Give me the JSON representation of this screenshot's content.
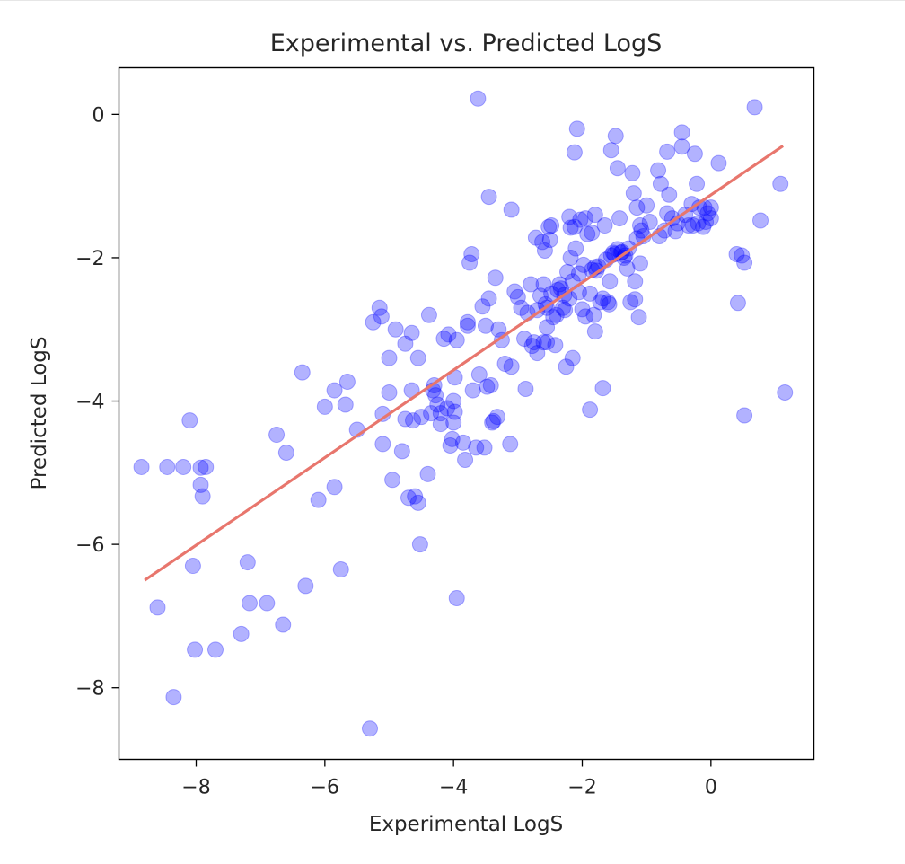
{
  "chart_data": {
    "type": "scatter",
    "title": "Experimental vs. Predicted LogS",
    "xlabel": "Experimental LogS",
    "ylabel": "Predicted LogS",
    "xlim": [
      -9.2,
      1.6
    ],
    "ylim": [
      -9.0,
      0.65
    ],
    "xticks": [
      -8,
      -6,
      -4,
      -2,
      0
    ],
    "yticks": [
      0,
      -2,
      -4,
      -6,
      -8
    ],
    "xtick_labels": [
      "−8",
      "−6",
      "−4",
      "−2",
      "0"
    ],
    "ytick_labels": [
      "0",
      "−2",
      "−4",
      "−6",
      "−8"
    ],
    "grid": false,
    "point_color": "#0000ff",
    "point_alpha": 0.3,
    "fit_color": "#e8766d",
    "fit_line": {
      "x": [
        -8.8,
        1.12
      ],
      "y": [
        -6.5,
        -0.44
      ]
    },
    "points": [
      [
        -8.85,
        -4.92
      ],
      [
        -8.45,
        -4.92
      ],
      [
        -8.2,
        -4.92
      ],
      [
        -8.6,
        -6.88
      ],
      [
        -8.35,
        -8.13
      ],
      [
        -8.05,
        -6.3
      ],
      [
        -8.02,
        -7.47
      ],
      [
        -8.1,
        -4.27
      ],
      [
        -7.93,
        -4.93
      ],
      [
        -7.85,
        -4.92
      ],
      [
        -7.93,
        -5.17
      ],
      [
        -7.9,
        -5.33
      ],
      [
        -7.7,
        -7.47
      ],
      [
        -7.2,
        -6.25
      ],
      [
        -7.17,
        -6.82
      ],
      [
        -7.3,
        -7.25
      ],
      [
        -6.9,
        -6.82
      ],
      [
        -6.75,
        -4.47
      ],
      [
        -6.65,
        -7.12
      ],
      [
        -6.6,
        -4.72
      ],
      [
        -6.35,
        -3.6
      ],
      [
        -6.3,
        -6.58
      ],
      [
        -6.1,
        -5.38
      ],
      [
        -6.0,
        -4.08
      ],
      [
        -5.85,
        -5.2
      ],
      [
        -5.85,
        -3.85
      ],
      [
        -5.75,
        -6.35
      ],
      [
        -5.68,
        -4.05
      ],
      [
        -5.65,
        -3.73
      ],
      [
        -5.5,
        -4.4
      ],
      [
        -5.3,
        -8.57
      ],
      [
        -5.25,
        -2.9
      ],
      [
        -5.15,
        -2.7
      ],
      [
        -5.12,
        -2.82
      ],
      [
        -5.1,
        -4.18
      ],
      [
        -5.1,
        -4.6
      ],
      [
        -5.0,
        -3.4
      ],
      [
        -5.0,
        -3.88
      ],
      [
        -4.95,
        -5.1
      ],
      [
        -4.9,
        -3.0
      ],
      [
        -4.8,
        -4.7
      ],
      [
        -4.75,
        -4.25
      ],
      [
        -4.75,
        -3.2
      ],
      [
        -4.7,
        -5.35
      ],
      [
        -4.65,
        -3.05
      ],
      [
        -4.65,
        -3.85
      ],
      [
        -4.63,
        -4.27
      ],
      [
        -4.6,
        -5.33
      ],
      [
        -4.55,
        -5.42
      ],
      [
        -4.55,
        -3.4
      ],
      [
        -4.52,
        -6.0
      ],
      [
        -4.5,
        -4.22
      ],
      [
        -4.4,
        -5.02
      ],
      [
        -4.38,
        -2.8
      ],
      [
        -4.35,
        -4.17
      ],
      [
        -4.32,
        -3.85
      ],
      [
        -4.3,
        -3.78
      ],
      [
        -4.28,
        -3.92
      ],
      [
        -4.25,
        -4.05
      ],
      [
        -4.2,
        -4.17
      ],
      [
        -4.2,
        -4.32
      ],
      [
        -4.15,
        -3.13
      ],
      [
        -4.1,
        -4.1
      ],
      [
        -4.08,
        -3.07
      ],
      [
        -4.05,
        -4.62
      ],
      [
        -4.02,
        -4.53
      ],
      [
        -4.0,
        -4.0
      ],
      [
        -4.0,
        -4.3
      ],
      [
        -3.98,
        -3.67
      ],
      [
        -3.98,
        -4.15
      ],
      [
        -3.95,
        -6.75
      ],
      [
        -3.95,
        -3.15
      ],
      [
        -3.85,
        -4.58
      ],
      [
        -3.82,
        -4.82
      ],
      [
        -3.78,
        -2.9
      ],
      [
        -3.78,
        -2.95
      ],
      [
        -3.75,
        -2.07
      ],
      [
        -3.72,
        -1.95
      ],
      [
        -3.7,
        -3.85
      ],
      [
        -3.65,
        -4.65
      ],
      [
        -3.62,
        0.22
      ],
      [
        -3.6,
        -3.63
      ],
      [
        -3.55,
        -2.68
      ],
      [
        -3.52,
        -4.65
      ],
      [
        -3.5,
        -2.95
      ],
      [
        -3.48,
        -3.8
      ],
      [
        -3.45,
        -2.57
      ],
      [
        -3.45,
        -1.15
      ],
      [
        -3.42,
        -3.78
      ],
      [
        -3.4,
        -4.3
      ],
      [
        -3.38,
        -4.28
      ],
      [
        -3.35,
        -2.28
      ],
      [
        -3.32,
        -4.22
      ],
      [
        -3.3,
        -3.0
      ],
      [
        -3.25,
        -3.15
      ],
      [
        -3.2,
        -3.48
      ],
      [
        -3.12,
        -4.6
      ],
      [
        -3.1,
        -1.33
      ],
      [
        -3.1,
        -3.52
      ],
      [
        -3.05,
        -2.47
      ],
      [
        -3.0,
        -2.55
      ],
      [
        -2.95,
        -2.7
      ],
      [
        -2.9,
        -3.13
      ],
      [
        -2.88,
        -3.83
      ],
      [
        -2.85,
        -2.77
      ],
      [
        -2.8,
        -2.37
      ],
      [
        -2.78,
        -3.23
      ],
      [
        -2.75,
        -3.18
      ],
      [
        -2.72,
        -1.72
      ],
      [
        -2.7,
        -3.33
      ],
      [
        -2.7,
        -2.73
      ],
      [
        -2.65,
        -2.53
      ],
      [
        -2.62,
        -1.78
      ],
      [
        -2.6,
        -3.18
      ],
      [
        -2.6,
        -2.37
      ],
      [
        -2.58,
        -1.9
      ],
      [
        -2.57,
        -2.65
      ],
      [
        -2.55,
        -3.18
      ],
      [
        -2.55,
        -2.97
      ],
      [
        -2.55,
        -2.7
      ],
      [
        -2.52,
        -1.57
      ],
      [
        -2.5,
        -1.75
      ],
      [
        -2.48,
        -1.55
      ],
      [
        -2.48,
        -2.5
      ],
      [
        -2.45,
        -2.83
      ],
      [
        -2.42,
        -3.22
      ],
      [
        -2.4,
        -2.8
      ],
      [
        -2.38,
        -2.45
      ],
      [
        -2.35,
        -2.37
      ],
      [
        -2.33,
        -2.43
      ],
      [
        -2.3,
        -2.7
      ],
      [
        -2.28,
        -2.52
      ],
      [
        -2.27,
        -2.73
      ],
      [
        -2.25,
        -3.52
      ],
      [
        -2.23,
        -2.2
      ],
      [
        -2.2,
        -1.43
      ],
      [
        -2.2,
        -2.57
      ],
      [
        -2.18,
        -1.58
      ],
      [
        -2.18,
        -2.0
      ],
      [
        -2.15,
        -2.33
      ],
      [
        -2.15,
        -3.4
      ],
      [
        -2.12,
        -0.53
      ],
      [
        -2.12,
        -1.57
      ],
      [
        -2.1,
        -1.87
      ],
      [
        -2.08,
        -0.2
      ],
      [
        -2.05,
        -2.22
      ],
      [
        -2.05,
        -2.48
      ],
      [
        -2.03,
        -1.47
      ],
      [
        -2.0,
        -2.72
      ],
      [
        -1.98,
        -2.1
      ],
      [
        -1.95,
        -2.82
      ],
      [
        -1.95,
        -1.45
      ],
      [
        -1.92,
        -1.67
      ],
      [
        -1.88,
        -2.5
      ],
      [
        -1.88,
        -4.12
      ],
      [
        -1.85,
        -2.17
      ],
      [
        -1.85,
        -1.65
      ],
      [
        -1.82,
        -2.8
      ],
      [
        -1.8,
        -1.4
      ],
      [
        -1.8,
        -3.03
      ],
      [
        -1.8,
        -2.13
      ],
      [
        -1.78,
        -2.18
      ],
      [
        -1.75,
        -2.12
      ],
      [
        -1.72,
        -2.62
      ],
      [
        -1.68,
        -2.57
      ],
      [
        -1.68,
        -3.82
      ],
      [
        -1.65,
        -1.55
      ],
      [
        -1.63,
        -2.03
      ],
      [
        -1.6,
        -2.62
      ],
      [
        -1.58,
        -2.65
      ],
      [
        -1.57,
        -2.33
      ],
      [
        -1.55,
        -1.97
      ],
      [
        -1.55,
        -0.5
      ],
      [
        -1.52,
        -1.93
      ],
      [
        -1.5,
        -1.95
      ],
      [
        -1.48,
        -0.3
      ],
      [
        -1.45,
        -0.75
      ],
      [
        -1.45,
        -1.88
      ],
      [
        -1.42,
        -1.45
      ],
      [
        -1.4,
        -1.93
      ],
      [
        -1.38,
        -1.92
      ],
      [
        -1.35,
        -2.0
      ],
      [
        -1.33,
        -1.97
      ],
      [
        -1.3,
        -2.15
      ],
      [
        -1.28,
        -1.87
      ],
      [
        -1.25,
        -2.62
      ],
      [
        -1.22,
        -0.82
      ],
      [
        -1.2,
        -1.1
      ],
      [
        -1.18,
        -2.58
      ],
      [
        -1.18,
        -2.33
      ],
      [
        -1.15,
        -1.73
      ],
      [
        -1.15,
        -1.3
      ],
      [
        -1.12,
        -2.83
      ],
      [
        -1.1,
        -1.55
      ],
      [
        -1.1,
        -2.08
      ],
      [
        -1.08,
        -1.62
      ],
      [
        -1.05,
        -1.7
      ],
      [
        -1.0,
        -1.27
      ],
      [
        -0.95,
        -1.5
      ],
      [
        -0.82,
        -0.78
      ],
      [
        -0.8,
        -1.7
      ],
      [
        -0.78,
        -0.97
      ],
      [
        -0.72,
        -1.62
      ],
      [
        -0.68,
        -0.52
      ],
      [
        -0.68,
        -1.38
      ],
      [
        -0.65,
        -1.12
      ],
      [
        -0.6,
        -1.45
      ],
      [
        -0.55,
        -1.63
      ],
      [
        -0.52,
        -1.52
      ],
      [
        -0.45,
        -0.25
      ],
      [
        -0.45,
        -0.45
      ],
      [
        -0.4,
        -1.4
      ],
      [
        -0.35,
        -1.55
      ],
      [
        -0.3,
        -1.25
      ],
      [
        -0.28,
        -1.55
      ],
      [
        -0.25,
        -0.55
      ],
      [
        -0.22,
        -0.97
      ],
      [
        -0.2,
        -1.52
      ],
      [
        -0.18,
        -1.3
      ],
      [
        -0.12,
        -1.57
      ],
      [
        -0.1,
        -1.3
      ],
      [
        -0.08,
        -1.5
      ],
      [
        -0.05,
        -1.38
      ],
      [
        0.0,
        -1.45
      ],
      [
        0.12,
        -0.68
      ],
      [
        0.0,
        -1.3
      ],
      [
        0.4,
        -1.95
      ],
      [
        0.42,
        -2.63
      ],
      [
        0.48,
        -1.97
      ],
      [
        0.52,
        -2.07
      ],
      [
        0.52,
        -4.2
      ],
      [
        0.68,
        0.1
      ],
      [
        0.77,
        -1.48
      ],
      [
        1.08,
        -0.97
      ],
      [
        1.15,
        -3.88
      ]
    ]
  }
}
